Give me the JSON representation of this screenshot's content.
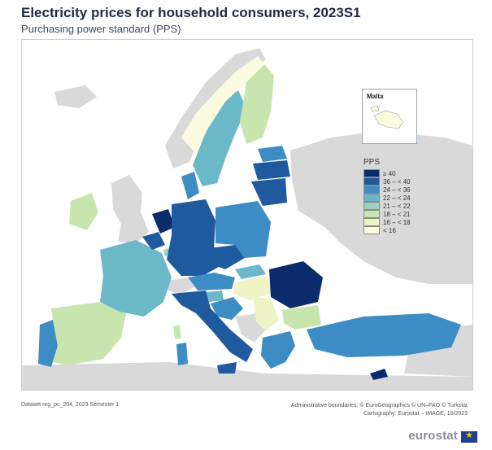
{
  "header": {
    "title": "Electricity prices for household consumers, 2023S1",
    "subtitle": "Purchasing power standard (PPS)"
  },
  "inset": {
    "label": "Malta"
  },
  "legend": {
    "title": "PPS",
    "classes": [
      {
        "label": "≥ 40",
        "color": "#0c2b6b"
      },
      {
        "label": "36 – < 40",
        "color": "#1f5a9e"
      },
      {
        "label": "24 – < 36",
        "color": "#3d8dc4"
      },
      {
        "label": "22 – < 24",
        "color": "#6bb8c9"
      },
      {
        "label": "21 – < 22",
        "color": "#9cd3bf"
      },
      {
        "label": "18 – < 21",
        "color": "#c8e5ad"
      },
      {
        "label": "16 – < 18",
        "color": "#eef4c4"
      },
      {
        "label": "< 16",
        "color": "#fbfbe0"
      }
    ]
  },
  "colors": {
    "sea": "#ffffff",
    "no_data": "#d9d9d9",
    "border": "#ffffff"
  },
  "footer": {
    "dataset": "Dataset nrg_pc_204, 2023 Semester 1",
    "boundaries": "Administrative boundaries: © EuroGeographics © UN–FAO © Turkstat",
    "cartography": "Cartography: Eurostat – IMAGE, 10/2023"
  },
  "brand": {
    "name": "eurostat"
  }
}
